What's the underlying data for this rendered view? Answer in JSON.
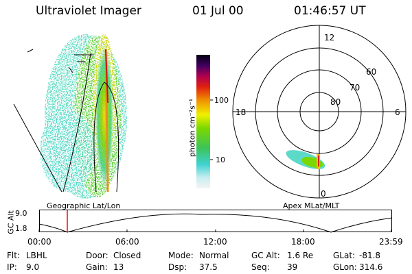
{
  "header": {
    "instrument": "Ultraviolet Imager",
    "date": "01 Jul 00",
    "time": "01:46:57 UT"
  },
  "panels": {
    "left_label": "Geographic Lat/Lon",
    "right_label": "Apex MLat/MLT"
  },
  "colorbar": {
    "unit_label": "photon cm⁻²s⁻¹",
    "scale": "log",
    "ticks": [
      "100",
      "10"
    ]
  },
  "polar": {
    "mlt_labels": [
      "12",
      "18",
      "6",
      "0"
    ],
    "mlat_labels": [
      "60",
      "70",
      "80"
    ]
  },
  "altitude_plot": {
    "ylabel": "GC Alt",
    "y_ticks": [
      "9.0",
      "1.8"
    ],
    "x_ticks": [
      "00:00",
      "06:00",
      "12:00",
      "18:00",
      "23:59"
    ],
    "current_time_marker": "01:46:57"
  },
  "footer": {
    "row1": [
      {
        "label": "Flt:",
        "value": "LBHL"
      },
      {
        "label": "Door:",
        "value": "Closed"
      },
      {
        "label": "Mode:",
        "value": "Normal"
      },
      {
        "label": "GC Alt:",
        "value": "1.6 Re"
      },
      {
        "label": "GLat:",
        "value": "-81.8"
      }
    ],
    "row2": [
      {
        "label": "IP:",
        "value": "9.0"
      },
      {
        "label": "Gain:",
        "value": "13"
      },
      {
        "label": "Dsp:",
        "value": "37.5"
      },
      {
        "label": "Seq:",
        "value": "39"
      },
      {
        "label": "GLon:",
        "value": "314.6"
      }
    ]
  },
  "colors": {
    "background": "#ffffff",
    "foreground": "#000000",
    "marker": "#ff0000"
  }
}
